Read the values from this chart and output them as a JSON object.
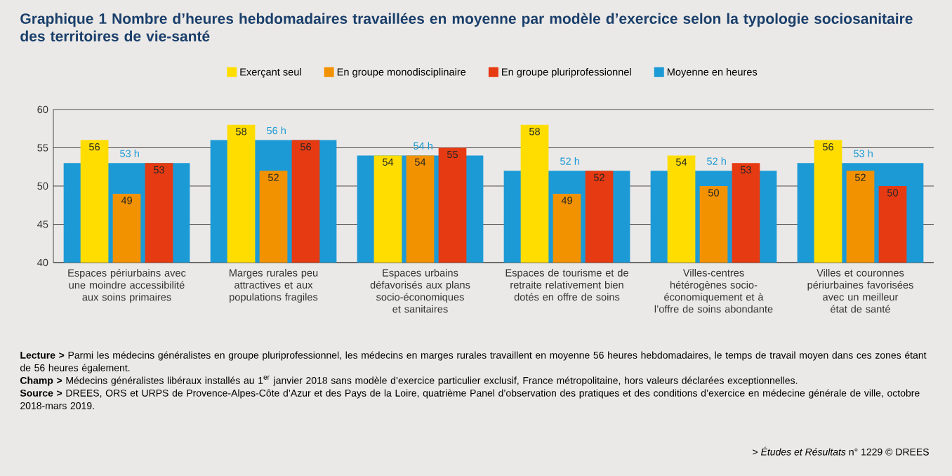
{
  "chart_data": {
    "type": "bar",
    "title": "Graphique 1 Nombre d’heures hebdomadaires travaillées en moyenne par modèle d’exercice selon la typologie sociosanitaire des territoires de vie-santé",
    "categories": [
      "Espaces périurbains avec une moindre accessibilité aux soins primaires",
      "Marges rurales peu attractives et aux populations fragiles",
      "Espaces urbains défavorisés aux plans socio-économiques et sanitaires",
      "Espaces de tourisme et de retraite relativement bien dotés en offre de soins",
      "Villes-centres hétérogènes socio-économiquement et à l’offre de soins abondante",
      "Villes et couronnes périurbaines favorisées avec un meilleur état de santé"
    ],
    "series": [
      {
        "name": "Exerçant seul",
        "color": "#ffdd00",
        "values": [
          56,
          58,
          54,
          58,
          54,
          56
        ],
        "value_labels": [
          "56",
          "58",
          "54",
          "58",
          "54",
          "56"
        ]
      },
      {
        "name": "En groupe monodisciplinaire",
        "color": "#f39200",
        "values": [
          49,
          52,
          54,
          49,
          50,
          52
        ],
        "value_labels": [
          "49",
          "52",
          "54",
          "49",
          "50",
          "52"
        ]
      },
      {
        "name": "En groupe pluriprofessionnel",
        "color": "#e63a12",
        "values": [
          53,
          56,
          55,
          52,
          53,
          50
        ],
        "value_labels": [
          "53",
          "56",
          "55",
          "52",
          "53",
          "50"
        ]
      },
      {
        "name": "Moyenne en heures",
        "color": "#1c9ad6",
        "values": [
          53,
          56,
          54,
          52,
          52,
          53
        ],
        "value_labels": [
          "53 h",
          "56 h",
          "54 h",
          "52 h",
          "52 h",
          "53 h"
        ]
      }
    ],
    "ylim": [
      40,
      60
    ],
    "yticks": [
      40,
      45,
      50,
      55,
      60
    ],
    "grid": "y",
    "legend": "top",
    "annotations": [
      "**Lecture >** Parmi les médecins généralistes en groupe pluriprofessionnel, les médecins en marges rurales travaillent en moyenne 56 heures hebdomadaires, le temps de travail moyen dans ces zones étant de 56 heures également.",
      "**Champ >** Médecins généralistes libéraux installés au 1$^{er}$ janvier 2018 sans modèle d’exercice particulier exclusif, France métropolitaine, hors valeurs déclarées exceptionnelles.",
      "**Source >** DREES, ORS et URPS de Provence-Alpes-Côte d’Azur et des Pays de la Loire, quatrième Panel d’observation des pratiques et des conditions d’exercice en médecine générale de ville, octobre 2018-mars 2019.",
      "> *Études et Résultats* n° 1229 © DREES"
    ]
  }
}
